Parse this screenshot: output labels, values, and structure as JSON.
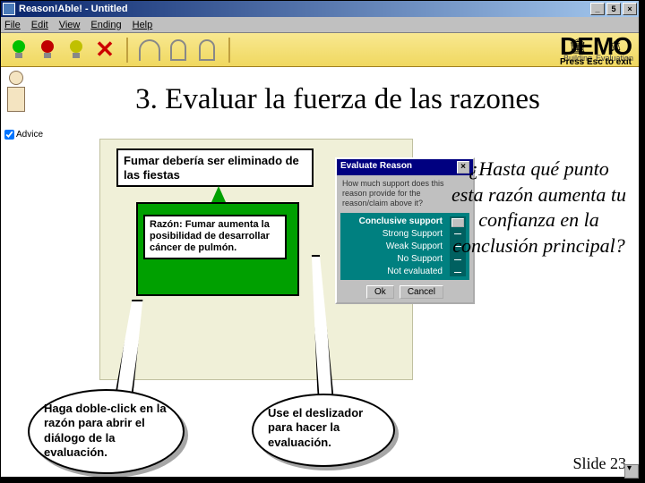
{
  "window": {
    "title": "Reason!Able! - Untitled",
    "menus": [
      "File",
      "Edit",
      "View",
      "Ending",
      "Help"
    ]
  },
  "toolbar": {
    "bulb_colors": [
      "#00c000",
      "#c00000",
      "#c0c000"
    ],
    "building_label": "Building",
    "evaluation_label": "Evaluation"
  },
  "demo": {
    "title": "DEMO",
    "subtitle": "Press Esc to exit"
  },
  "advice_label": "Advice",
  "main_title": "3. Evaluar la fuerza de las razones",
  "claim_text": "Fumar debería ser eliminado de las fiestas",
  "reason_text": "Razón: Fumar aumenta la posibilidad de desarrollar cáncer de pulmón.",
  "eval_dialog": {
    "title": "Evaluate Reason",
    "question": "How much support does this reason provide for the reason/claim above it?",
    "levels": [
      "Conclusive support",
      "Strong Support",
      "Weak Support",
      "No Support",
      "Not evaluated"
    ],
    "ok": "Ok",
    "cancel": "Cancel"
  },
  "callouts": {
    "c1": "Haga doble-click en la razón para abrir el diálogo de la evaluación.",
    "c2": "Use el deslizador para hacer la evaluación."
  },
  "side_question": "¿Hasta qué punto esta razón aumenta tu confianza en la conclusión principal?",
  "slide_num": "Slide 23"
}
